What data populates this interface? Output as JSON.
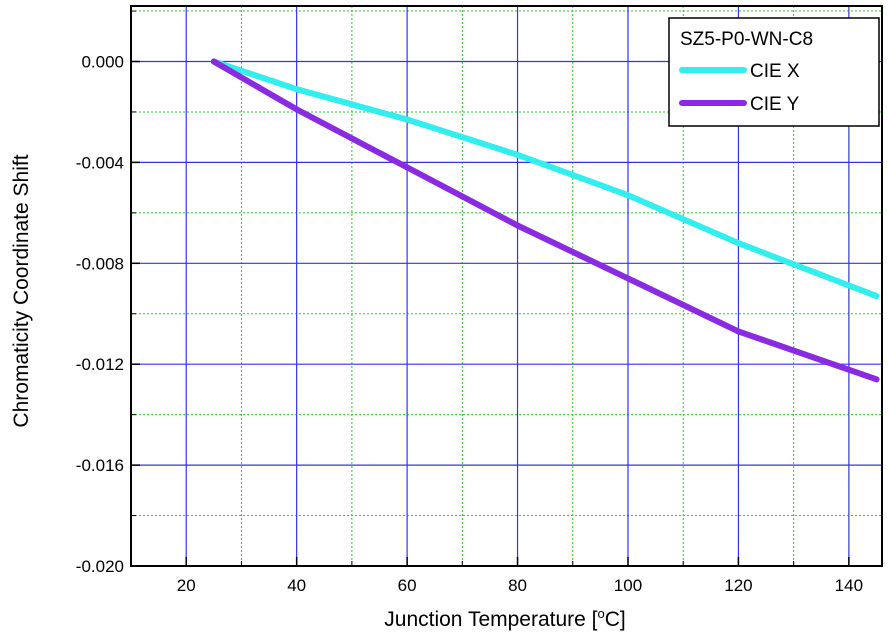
{
  "chart_data": {
    "type": "line",
    "title": "",
    "xlabel": "Junction Temperature [",
    "xlabel_sup": "o",
    "xlabel_suffix": "C]",
    "ylabel": "Chromaticity Coordinate Shift",
    "xlim": [
      10,
      146
    ],
    "ylim": [
      -0.02,
      0.0022
    ],
    "xticks": [
      20,
      40,
      60,
      80,
      100,
      120,
      140
    ],
    "xtick_labels": [
      "20",
      "40",
      "60",
      "80",
      "100",
      "120",
      "140"
    ],
    "yticks": [
      0.0,
      -0.004,
      -0.008,
      -0.012,
      -0.016,
      -0.02
    ],
    "ytick_labels": [
      "0.000",
      "-0.004",
      "-0.008",
      "-0.012",
      "-0.016",
      "-0.020"
    ],
    "grid": true,
    "legend": {
      "title": "SZ5-P0-WN-C8",
      "placement": "top-right"
    },
    "series": [
      {
        "name": "CIE X",
        "color": "#33eeee",
        "points": [
          [
            25,
            0.0
          ],
          [
            40,
            -0.0011
          ],
          [
            60,
            -0.0023
          ],
          [
            80,
            -0.0037
          ],
          [
            100,
            -0.0053
          ],
          [
            120,
            -0.0072
          ],
          [
            145,
            -0.0093
          ]
        ]
      },
      {
        "name": "CIE Y",
        "color": "#8a2be2",
        "points": [
          [
            25,
            0.0
          ],
          [
            40,
            -0.0019
          ],
          [
            60,
            -0.0042
          ],
          [
            80,
            -0.0065
          ],
          [
            100,
            -0.0086
          ],
          [
            120,
            -0.0107
          ],
          [
            145,
            -0.0126
          ]
        ]
      }
    ]
  }
}
